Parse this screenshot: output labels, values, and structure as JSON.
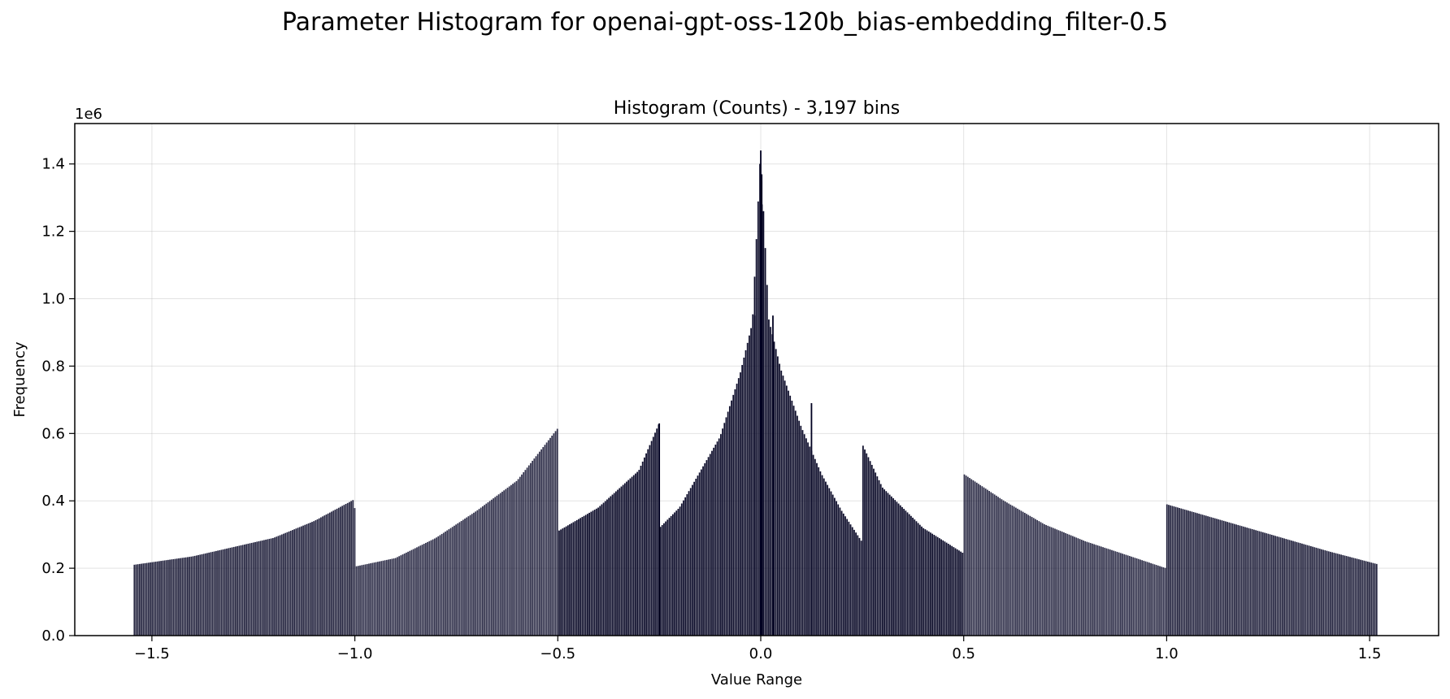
{
  "chart_data": {
    "type": "bar",
    "suptitle": "Parameter Histogram for openai-gpt-oss-120b_bias-embedding_filter-0.5",
    "title": "Histogram (Counts) - 3,197 bins",
    "xlabel": "Value Range",
    "ylabel": "Frequency",
    "y_offset_label": "1e6",
    "xlim": [
      -1.69,
      1.67
    ],
    "ylim": [
      0,
      1520000
    ],
    "x_ticks": [
      -1.5,
      -1.0,
      -0.5,
      0.0,
      0.5,
      1.0,
      1.5
    ],
    "x_tick_labels": [
      "−1.5",
      "−1.0",
      "−0.5",
      "0.0",
      "0.5",
      "1.0",
      "1.5"
    ],
    "y_ticks": [
      0,
      200000,
      400000,
      600000,
      800000,
      1000000,
      1200000,
      1400000
    ],
    "y_tick_labels": [
      "0.0",
      "0.2",
      "0.4",
      "0.6",
      "0.8",
      "1.0",
      "1.2",
      "1.4"
    ],
    "grid": true,
    "bar_color": "#000020",
    "bins": 3197,
    "range": [
      -1.545,
      1.52
    ],
    "envelope_points": [
      [
        -1.545,
        210000
      ],
      [
        -1.4,
        235000
      ],
      [
        -1.2,
        290000
      ],
      [
        -1.1,
        340000
      ],
      [
        -1.0,
        405000
      ],
      [
        -0.999,
        205000
      ],
      [
        -0.9,
        230000
      ],
      [
        -0.8,
        290000
      ],
      [
        -0.7,
        370000
      ],
      [
        -0.6,
        460000
      ],
      [
        -0.5,
        615000
      ],
      [
        -0.499,
        310000
      ],
      [
        -0.4,
        380000
      ],
      [
        -0.3,
        490000
      ],
      [
        -0.25,
        630000
      ],
      [
        -0.249,
        320000
      ],
      [
        -0.2,
        380000
      ],
      [
        -0.1,
        590000
      ],
      [
        -0.05,
        780000
      ],
      [
        -0.02,
        930000
      ],
      [
        0.0,
        1440000
      ],
      [
        0.02,
        940000
      ],
      [
        0.05,
        790000
      ],
      [
        0.1,
        620000
      ],
      [
        0.15,
        480000
      ],
      [
        0.2,
        370000
      ],
      [
        0.249,
        280000
      ],
      [
        0.25,
        570000
      ],
      [
        0.3,
        440000
      ],
      [
        0.4,
        320000
      ],
      [
        0.499,
        245000
      ],
      [
        0.5,
        480000
      ],
      [
        0.6,
        400000
      ],
      [
        0.7,
        330000
      ],
      [
        0.8,
        280000
      ],
      [
        0.9,
        240000
      ],
      [
        0.999,
        200000
      ],
      [
        1.0,
        390000
      ],
      [
        1.2,
        320000
      ],
      [
        1.4,
        250000
      ],
      [
        1.52,
        212000
      ]
    ],
    "spikes": [
      [
        -0.015,
        950000
      ],
      [
        0.0,
        1440000
      ],
      [
        0.002,
        1350000
      ],
      [
        0.003,
        1280000
      ],
      [
        0.03,
        950000
      ],
      [
        0.125,
        690000
      ],
      [
        -0.25,
        630000
      ]
    ]
  }
}
